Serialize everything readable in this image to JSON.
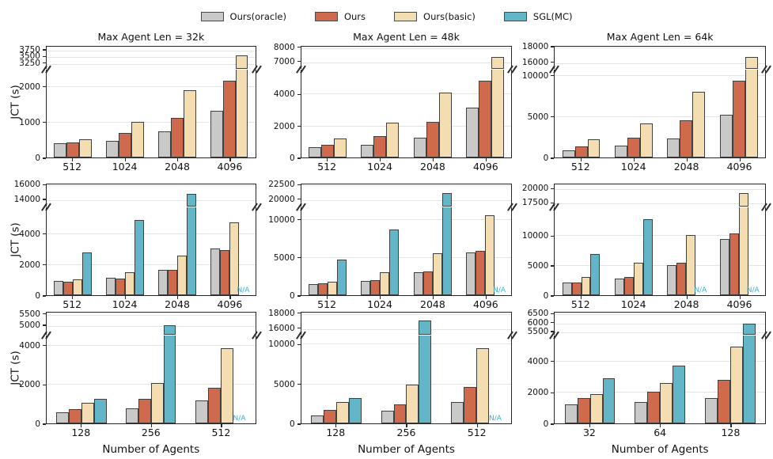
{
  "figure": {
    "ylabel": "JCT (s)",
    "xlabel": "Number of Agents",
    "na_text": "N/A"
  },
  "colors": {
    "oracle": "#c9c9c9",
    "ours": "#cf6a4c",
    "basic": "#f3ddb1",
    "sgl": "#62b6c8",
    "edge": "#404040",
    "grid": "#e4e4e4",
    "na": "#3daecb",
    "spine": "#262626"
  },
  "legend": [
    {
      "label": "Ours(oracle)",
      "color_key": "oracle"
    },
    {
      "label": "Ours",
      "color_key": "ours"
    },
    {
      "label": "Ours(basic)",
      "color_key": "basic"
    },
    {
      "label": "SGL(MC)",
      "color_key": "sgl"
    }
  ],
  "chart_data": [
    {
      "type": "bar",
      "title": "Max Agent Len = 32k",
      "row": 0,
      "col": 0,
      "slots": 3,
      "categories": [
        "512",
        "1024",
        "2048",
        "4096"
      ],
      "series": [
        {
          "name": "Ours(oracle)",
          "color_key": "oracle",
          "values": [
            390,
            460,
            720,
            1310
          ]
        },
        {
          "name": "Ours",
          "color_key": "ours",
          "values": [
            410,
            680,
            1110,
            2140
          ]
        },
        {
          "name": "Ours(basic)",
          "color_key": "basic",
          "values": [
            520,
            1000,
            1880,
            3560
          ]
        }
      ],
      "na_categories": [],
      "lower": {
        "max": 2450,
        "ticks": [
          0,
          1000,
          2000
        ]
      },
      "upper": {
        "min": 3050,
        "max": 3900,
        "ticks": [
          3250,
          3500,
          3750
        ]
      }
    },
    {
      "type": "bar",
      "title": "Max Agent Len = 48k",
      "row": 0,
      "col": 1,
      "slots": 3,
      "categories": [
        "512",
        "1024",
        "2048",
        "4096"
      ],
      "series": [
        {
          "name": "Ours(oracle)",
          "color_key": "oracle",
          "values": [
            650,
            780,
            1250,
            3150
          ]
        },
        {
          "name": "Ours",
          "color_key": "ours",
          "values": [
            800,
            1350,
            2250,
            4800
          ]
        },
        {
          "name": "Ours(basic)",
          "color_key": "basic",
          "values": [
            1200,
            2180,
            4050,
            7350
          ]
        }
      ],
      "na_categories": [],
      "lower": {
        "max": 5500,
        "ticks": [
          0,
          2000,
          4000
        ]
      },
      "upper": {
        "min": 6500,
        "max": 8100,
        "ticks": [
          7000,
          8000
        ]
      }
    },
    {
      "type": "bar",
      "title": "Max Agent Len = 64k",
      "row": 0,
      "col": 2,
      "slots": 3,
      "categories": [
        "512",
        "1024",
        "2048",
        "4096"
      ],
      "series": [
        {
          "name": "Ours(oracle)",
          "color_key": "oracle",
          "values": [
            850,
            1450,
            2300,
            5200
          ]
        },
        {
          "name": "Ours",
          "color_key": "ours",
          "values": [
            1300,
            2350,
            4500,
            9300
          ]
        },
        {
          "name": "Ours(basic)",
          "color_key": "basic",
          "values": [
            2250,
            4100,
            7900,
            16800
          ]
        }
      ],
      "na_categories": [],
      "lower": {
        "max": 10600,
        "ticks": [
          0,
          5000,
          10000
        ]
      },
      "upper": {
        "min": 15200,
        "max": 18100,
        "ticks": [
          16000,
          18000
        ]
      }
    },
    {
      "type": "bar",
      "title": null,
      "row": 1,
      "col": 0,
      "slots": 4,
      "categories": [
        "512",
        "1024",
        "2048",
        "4096"
      ],
      "series": [
        {
          "name": "Ours(oracle)",
          "color_key": "oracle",
          "values": [
            900,
            1100,
            1650,
            3000
          ]
        },
        {
          "name": "Ours",
          "color_key": "ours",
          "values": [
            880,
            1080,
            1620,
            2900
          ]
        },
        {
          "name": "Ours(basic)",
          "color_key": "basic",
          "values": [
            1000,
            1500,
            2550,
            4700
          ]
        },
        {
          "name": "SGL(MC)",
          "color_key": "sgl",
          "values": [
            2750,
            4850,
            14900,
            null
          ]
        }
      ],
      "na_categories": [
        3
      ],
      "lower": {
        "max": 5650,
        "ticks": [
          0,
          2000,
          4000
        ]
      },
      "upper": {
        "min": 13100,
        "max": 16150,
        "ticks": [
          14000,
          16000
        ]
      }
    },
    {
      "type": "bar",
      "title": null,
      "row": 1,
      "col": 1,
      "slots": 4,
      "categories": [
        "512",
        "1024",
        "2048",
        "4096"
      ],
      "series": [
        {
          "name": "Ours(oracle)",
          "color_key": "oracle",
          "values": [
            1450,
            1850,
            3050,
            5600
          ]
        },
        {
          "name": "Ours",
          "color_key": "ours",
          "values": [
            1550,
            1950,
            3150,
            5850
          ]
        },
        {
          "name": "Ours(basic)",
          "color_key": "basic",
          "values": [
            1800,
            3000,
            5500,
            10500
          ]
        },
        {
          "name": "SGL(MC)",
          "color_key": "sgl",
          "values": [
            4700,
            8600,
            21200,
            null
          ]
        }
      ],
      "na_categories": [
        3
      ],
      "lower": {
        "max": 11500,
        "ticks": [
          0,
          5000,
          10000
        ]
      },
      "upper": {
        "min": 18800,
        "max": 22700,
        "ticks": [
          20000,
          22500
        ]
      }
    },
    {
      "type": "bar",
      "title": null,
      "row": 1,
      "col": 2,
      "slots": 4,
      "categories": [
        "512",
        "1024",
        "2048",
        "4096"
      ],
      "series": [
        {
          "name": "Ours(oracle)",
          "color_key": "oracle",
          "values": [
            2050,
            2750,
            5000,
            9400
          ]
        },
        {
          "name": "Ours",
          "color_key": "ours",
          "values": [
            2100,
            3050,
            5400,
            10300
          ]
        },
        {
          "name": "Ours(basic)",
          "color_key": "basic",
          "values": [
            3000,
            5400,
            10000,
            19400
          ]
        },
        {
          "name": "SGL(MC)",
          "color_key": "sgl",
          "values": [
            6800,
            12700,
            null,
            null
          ]
        }
      ],
      "na_categories": [
        2,
        3
      ],
      "lower": {
        "max": 14600,
        "ticks": [
          0,
          5000,
          10000
        ]
      },
      "upper": {
        "min": 16950,
        "max": 20850,
        "ticks": [
          17500,
          20000
        ]
      }
    },
    {
      "type": "bar",
      "title": null,
      "row": 2,
      "col": 0,
      "slots": 4,
      "categories": [
        "128",
        "256",
        "512"
      ],
      "series": [
        {
          "name": "Ours(oracle)",
          "color_key": "oracle",
          "values": [
            550,
            780,
            1190
          ]
        },
        {
          "name": "Ours",
          "color_key": "ours",
          "values": [
            740,
            1260,
            1820
          ]
        },
        {
          "name": "Ours(basic)",
          "color_key": "basic",
          "values": [
            1040,
            2050,
            3850
          ]
        },
        {
          "name": "SGL(MC)",
          "color_key": "sgl",
          "values": [
            1250,
            5050,
            null
          ]
        }
      ],
      "na_categories": [
        2
      ],
      "lower": {
        "max": 4470,
        "ticks": [
          0,
          2000,
          4000
        ]
      },
      "upper": {
        "min": 4600,
        "max": 5600,
        "ticks": [
          5000,
          5500
        ]
      }
    },
    {
      "type": "bar",
      "title": null,
      "row": 2,
      "col": 1,
      "slots": 4,
      "categories": [
        "128",
        "256",
        "512"
      ],
      "series": [
        {
          "name": "Ours(oracle)",
          "color_key": "oracle",
          "values": [
            1030,
            1550,
            2700
          ]
        },
        {
          "name": "Ours",
          "color_key": "ours",
          "values": [
            1700,
            2430,
            4600
          ]
        },
        {
          "name": "Ours(basic)",
          "color_key": "basic",
          "values": [
            2640,
            4850,
            9400
          ]
        },
        {
          "name": "SGL(MC)",
          "color_key": "sgl",
          "values": [
            3150,
            17100,
            null
          ]
        }
      ],
      "na_categories": [
        2
      ],
      "lower": {
        "max": 11000,
        "ticks": [
          0,
          5000,
          10000
        ]
      },
      "upper": {
        "min": 15200,
        "max": 18200,
        "ticks": [
          16000,
          18000
        ]
      }
    },
    {
      "type": "bar",
      "title": null,
      "row": 2,
      "col": 2,
      "slots": 4,
      "categories": [
        "32",
        "64",
        "128"
      ],
      "series": [
        {
          "name": "Ours(oracle)",
          "color_key": "oracle",
          "values": [
            1230,
            1350,
            1620
          ]
        },
        {
          "name": "Ours",
          "color_key": "ours",
          "values": [
            1640,
            2020,
            2800
          ]
        },
        {
          "name": "Ours(basic)",
          "color_key": "basic",
          "values": [
            1860,
            2600,
            4900
          ]
        },
        {
          "name": "SGL(MC)",
          "color_key": "sgl",
          "values": [
            2900,
            3700,
            6000
          ]
        }
      ],
      "na_categories": [],
      "lower": {
        "max": 5600,
        "ticks": [
          0,
          2000,
          4000
        ]
      },
      "upper": {
        "min": 5350,
        "max": 6600,
        "ticks": [
          5500,
          6000,
          6500
        ]
      }
    }
  ]
}
